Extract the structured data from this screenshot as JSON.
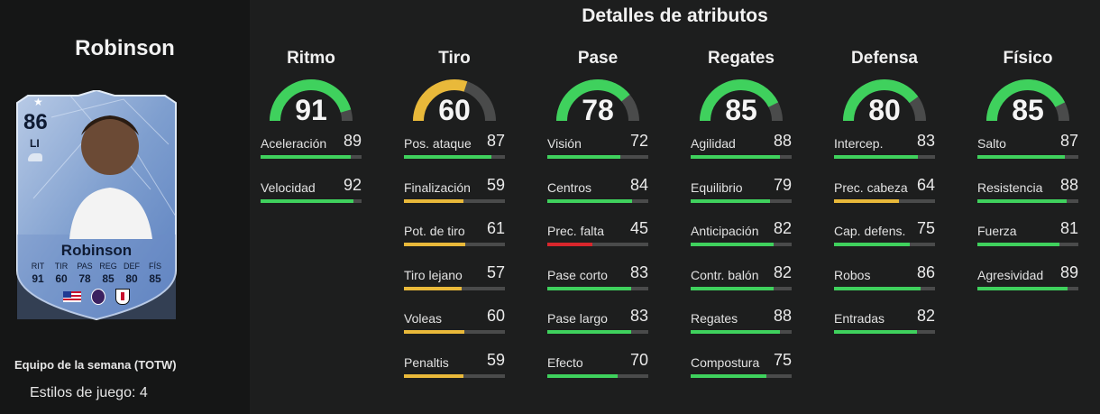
{
  "player": {
    "name": "Robinson",
    "card": {
      "rating": "86",
      "position": "LI",
      "name": "Robinson",
      "stats": [
        {
          "label": "RIT",
          "value": "91"
        },
        {
          "label": "TIR",
          "value": "60"
        },
        {
          "label": "PAS",
          "value": "78"
        },
        {
          "label": "REG",
          "value": "85"
        },
        {
          "label": "DEF",
          "value": "80"
        },
        {
          "label": "FÍS",
          "value": "85"
        }
      ]
    },
    "team_label": "Equipo de la semana (TOTW)",
    "styles_label": "Estilos de juego: 4"
  },
  "colors": {
    "green": "#3fd15d",
    "yellow": "#e9b93a",
    "red": "#d8262c",
    "track": "#4a4b4b"
  },
  "details": {
    "title": "Detalles de atributos",
    "categories": [
      {
        "title": "Ritmo",
        "value": 91,
        "attributes": [
          {
            "name": "Aceleración",
            "value": 89
          },
          {
            "name": "Velocidad",
            "value": 92
          }
        ]
      },
      {
        "title": "Tiro",
        "value": 60,
        "attributes": [
          {
            "name": "Pos. ataque",
            "value": 87
          },
          {
            "name": "Finalización",
            "value": 59
          },
          {
            "name": "Pot. de tiro",
            "value": 61
          },
          {
            "name": "Tiro lejano",
            "value": 57
          },
          {
            "name": "Voleas",
            "value": 60
          },
          {
            "name": "Penaltis",
            "value": 59
          }
        ]
      },
      {
        "title": "Pase",
        "value": 78,
        "attributes": [
          {
            "name": "Visión",
            "value": 72
          },
          {
            "name": "Centros",
            "value": 84
          },
          {
            "name": "Prec. falta",
            "value": 45
          },
          {
            "name": "Pase corto",
            "value": 83
          },
          {
            "name": "Pase largo",
            "value": 83
          },
          {
            "name": "Efecto",
            "value": 70
          }
        ]
      },
      {
        "title": "Regates",
        "value": 85,
        "attributes": [
          {
            "name": "Agilidad",
            "value": 88
          },
          {
            "name": "Equilibrio",
            "value": 79
          },
          {
            "name": "Anticipación",
            "value": 82
          },
          {
            "name": "Contr. balón",
            "value": 82
          },
          {
            "name": "Regates",
            "value": 88
          },
          {
            "name": "Compostura",
            "value": 75
          }
        ]
      },
      {
        "title": "Defensa",
        "value": 80,
        "attributes": [
          {
            "name": "Intercep.",
            "value": 83
          },
          {
            "name": "Prec. cabeza",
            "value": 64
          },
          {
            "name": "Cap. defens.",
            "value": 75
          },
          {
            "name": "Robos",
            "value": 86
          },
          {
            "name": "Entradas",
            "value": 82
          }
        ]
      },
      {
        "title": "Físico",
        "value": 85,
        "attributes": [
          {
            "name": "Salto",
            "value": 87
          },
          {
            "name": "Resistencia",
            "value": 88
          },
          {
            "name": "Fuerza",
            "value": 81
          },
          {
            "name": "Agresividad",
            "value": 89
          }
        ]
      }
    ]
  }
}
